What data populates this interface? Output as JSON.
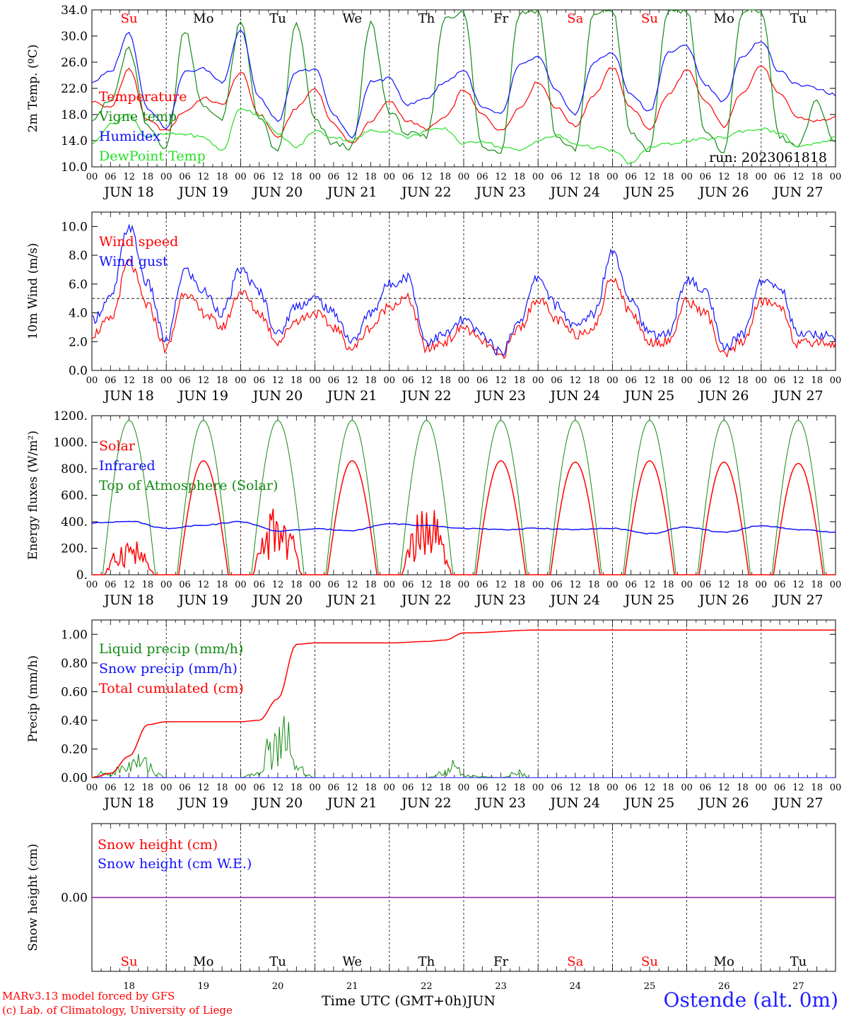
{
  "colors": {
    "red": "#ff0000",
    "blue": "#1010ff",
    "green": "#128a12",
    "light_green": "#22e022",
    "purple": "#8a1aa0",
    "black": "#000000",
    "sunday_red": "#ff0000"
  },
  "footer": {
    "credit_line1": "MARv3.13 model forced by GFS",
    "credit_line2": "(c) Lab. of Climatology, University of Liege",
    "x_axis_title": "Time UTC (GMT+0h)",
    "month": "JUN",
    "station": "Ostende (alt. 0m)"
  },
  "chart_data": [
    {
      "type": "line",
      "id": "temperature",
      "ylabel": "2m Temp. (ºC)",
      "ylim": [
        10,
        34
      ],
      "yticks": [
        "10.0",
        "14.0",
        "18.0",
        "22.0",
        "26.0",
        "30.0",
        "34.0"
      ],
      "annotation": "run: 2023061818",
      "weekday_labels": [
        "Su",
        "Mo",
        "Tu",
        "We",
        "Th",
        "Fr",
        "Sa",
        "Su",
        "Mo",
        "Tu"
      ],
      "date_labels": [
        "JUN 18",
        "JUN 19",
        "JUN 20",
        "JUN 21",
        "JUN 22",
        "JUN 23",
        "JUN 24",
        "JUN 25",
        "JUN 26",
        "JUN 27"
      ],
      "hour_ticks": [
        "00",
        "06",
        "12",
        "18"
      ],
      "x_unit": "hours since 2023-06-18 00 UTC",
      "x": [
        0,
        6,
        12,
        18,
        24,
        30,
        36,
        42,
        48,
        54,
        60,
        66,
        72,
        78,
        84,
        90,
        96,
        102,
        108,
        114,
        120,
        126,
        132,
        138,
        144,
        150,
        156,
        162,
        168,
        174,
        180,
        186,
        192,
        198,
        204,
        210,
        216,
        222,
        228,
        234,
        240
      ],
      "series": [
        {
          "name": "Temperature",
          "color": "red",
          "values": [
            20.0,
            19.0,
            25.0,
            17.0,
            15.5,
            18.5,
            20.5,
            19.5,
            24.5,
            18.0,
            14.5,
            19.0,
            22.0,
            16.5,
            13.5,
            17.0,
            20.0,
            17.0,
            15.8,
            17.5,
            21.8,
            18.0,
            15.5,
            19.0,
            23.0,
            19.0,
            16.2,
            21.0,
            25.2,
            19.0,
            15.8,
            21.0,
            24.8,
            20.0,
            16.2,
            21.5,
            25.5,
            21.0,
            17.5,
            17.0,
            17.5
          ]
        },
        {
          "name": "Vigne temp",
          "color": "green",
          "values": [
            17.5,
            20.0,
            28.0,
            16.0,
            13.0,
            31.0,
            19.0,
            17.5,
            32.0,
            17.5,
            12.0,
            32.0,
            17.0,
            13.5,
            13.0,
            32.0,
            18.5,
            15.0,
            14.5,
            33.0,
            33.5,
            13.0,
            12.5,
            33.5,
            34.0,
            14.5,
            12.5,
            33.5,
            34.0,
            15.0,
            12.5,
            34.0,
            34.0,
            15.0,
            12.5,
            34.0,
            34.0,
            14.5,
            13.0,
            20.0,
            13.5
          ]
        },
        {
          "name": "Humidex",
          "color": "blue",
          "values": [
            23.0,
            24.5,
            30.5,
            19.0,
            16.0,
            24.5,
            25.0,
            23.0,
            31.0,
            20.5,
            17.0,
            24.5,
            25.0,
            18.0,
            14.5,
            23.0,
            23.5,
            19.5,
            20.5,
            23.0,
            24.8,
            19.0,
            18.0,
            25.5,
            26.8,
            21.5,
            18.0,
            26.0,
            27.5,
            21.0,
            18.5,
            27.5,
            28.5,
            22.5,
            20.0,
            27.0,
            29.3,
            24.5,
            22.5,
            22.0,
            21.0
          ]
        },
        {
          "name": "DewPoint Temp",
          "color": "light_green",
          "values": [
            13.5,
            16.5,
            18.0,
            14.5,
            15.0,
            15.0,
            14.5,
            12.5,
            19.0,
            18.0,
            15.0,
            13.0,
            15.5,
            14.5,
            14.0,
            15.5,
            15.5,
            14.5,
            15.5,
            15.8,
            13.5,
            14.0,
            13.0,
            12.5,
            14.0,
            14.8,
            13.5,
            13.0,
            12.5,
            10.5,
            13.0,
            13.5,
            14.0,
            14.2,
            14.5,
            15.5,
            15.8,
            15.2,
            13.0,
            13.5,
            14.5
          ]
        }
      ]
    },
    {
      "type": "line",
      "id": "wind",
      "ylabel": "10m Wind (m/s)",
      "ylim": [
        0,
        11
      ],
      "yticks": [
        "0.0",
        "2.0",
        "4.0",
        "6.0",
        "8.0",
        "10.0"
      ],
      "reference_line": 5,
      "date_labels": [
        "JUN 18",
        "JUN 19",
        "JUN 20",
        "JUN 21",
        "JUN 22",
        "JUN 23",
        "JUN 24",
        "JUN 25",
        "JUN 26",
        "JUN 27"
      ],
      "hour_ticks": [
        "00",
        "06",
        "12",
        "18"
      ],
      "x": [
        0,
        6,
        12,
        18,
        24,
        30,
        36,
        42,
        48,
        54,
        60,
        66,
        72,
        78,
        84,
        90,
        96,
        102,
        108,
        114,
        120,
        126,
        132,
        138,
        144,
        150,
        156,
        162,
        168,
        174,
        180,
        186,
        192,
        198,
        204,
        210,
        216,
        222,
        228,
        234,
        240
      ],
      "series": [
        {
          "name": "Wind speed",
          "color": "red",
          "values": [
            2.5,
            3.5,
            7.5,
            4.5,
            1.5,
            5.5,
            4.0,
            3.0,
            5.5,
            4.0,
            2.0,
            3.5,
            4.0,
            3.0,
            1.5,
            3.0,
            4.5,
            5.0,
            1.5,
            2.0,
            3.0,
            2.0,
            1.0,
            3.0,
            5.0,
            3.5,
            2.5,
            3.0,
            6.5,
            4.0,
            2.0,
            2.0,
            4.8,
            4.0,
            1.0,
            2.0,
            4.8,
            4.5,
            1.8,
            2.0,
            1.8
          ]
        },
        {
          "name": "Wind gust",
          "color": "blue",
          "values": [
            3.5,
            5.0,
            10.0,
            6.0,
            2.0,
            7.0,
            5.5,
            4.0,
            7.0,
            5.5,
            2.5,
            4.5,
            5.0,
            4.0,
            2.0,
            4.0,
            6.0,
            6.5,
            2.0,
            2.5,
            3.5,
            2.5,
            1.2,
            3.5,
            6.5,
            4.5,
            3.0,
            4.0,
            8.3,
            5.0,
            2.5,
            2.5,
            6.3,
            5.5,
            1.5,
            2.5,
            6.2,
            5.8,
            2.5,
            2.5,
            2.3
          ]
        }
      ]
    },
    {
      "type": "line",
      "id": "energy",
      "ylabel": "Energy fluxes (W/m²)",
      "ylim": [
        0,
        1200
      ],
      "yticks": [
        "0.",
        "200.",
        "400.",
        "600.",
        "800.",
        "1000.",
        "1200."
      ],
      "date_labels": [
        "JUN 18",
        "JUN 19",
        "JUN 20",
        "JUN 21",
        "JUN 22",
        "JUN 23",
        "JUN 24",
        "JUN 25",
        "JUN 26",
        "JUN 27"
      ],
      "hour_ticks": [
        "00",
        "06",
        "12",
        "18"
      ],
      "daily_peak_hour_utc": 12,
      "series": [
        {
          "name": "Solar",
          "color": "red",
          "daily_peak": [
            300,
            860,
            560,
            860,
            560,
            860,
            850,
            860,
            850,
            840
          ]
        },
        {
          "name": "Infrared",
          "color": "blue",
          "x": [
            0,
            12,
            24,
            36,
            48,
            60,
            72,
            84,
            96,
            108,
            120,
            132,
            144,
            156,
            168,
            180,
            192,
            204,
            216,
            228,
            240
          ],
          "values": [
            390,
            405,
            350,
            375,
            400,
            330,
            345,
            335,
            385,
            370,
            350,
            340,
            350,
            340,
            350,
            310,
            360,
            320,
            370,
            340,
            320
          ]
        },
        {
          "name": "Top of Atmosphere (Solar)",
          "color": "green",
          "daily_peak": [
            1165,
            1165,
            1165,
            1165,
            1165,
            1165,
            1165,
            1165,
            1165,
            1165
          ]
        }
      ]
    },
    {
      "type": "line",
      "id": "precip",
      "ylabel": "Precip (mm/h)",
      "ylim": [
        0,
        1.1
      ],
      "yticks": [
        "0.00",
        "0.20",
        "0.40",
        "0.60",
        "0.80",
        "1.00"
      ],
      "date_labels": [
        "JUN 18",
        "JUN 19",
        "JUN 20",
        "JUN 21",
        "JUN 22",
        "JUN 23",
        "JUN 24",
        "JUN 25",
        "JUN 26",
        "JUN 27"
      ],
      "hour_ticks": [
        "00",
        "06",
        "12",
        "18"
      ],
      "series": [
        {
          "name": "Liquid precip (mm/h)",
          "color": "green",
          "x": [
            0,
            3,
            6,
            9,
            12,
            15,
            18,
            21,
            24,
            30,
            42,
            48,
            54,
            57,
            60,
            63,
            66,
            72,
            96,
            108,
            114,
            117,
            120,
            132,
            138,
            141,
            144,
            168,
            240
          ],
          "values": [
            0.0,
            0.04,
            0.03,
            0.08,
            0.12,
            0.15,
            0.14,
            0.03,
            0.0,
            0.0,
            0.0,
            0.0,
            0.05,
            0.25,
            0.32,
            0.48,
            0.1,
            0.0,
            0.0,
            0.0,
            0.05,
            0.11,
            0.02,
            0.0,
            0.05,
            0.0,
            0.0,
            0.0,
            0.0
          ]
        },
        {
          "name": "Snow precip (mm/h)",
          "color": "blue",
          "x": [
            0,
            240
          ],
          "values": [
            0.0,
            0.0
          ]
        },
        {
          "name": "Total cumulated (cm)",
          "color": "red",
          "x": [
            0,
            6,
            12,
            18,
            24,
            48,
            54,
            60,
            66,
            72,
            96,
            108,
            114,
            120,
            144,
            240
          ],
          "values": [
            0.0,
            0.03,
            0.15,
            0.37,
            0.39,
            0.39,
            0.4,
            0.55,
            0.93,
            0.94,
            0.94,
            0.95,
            0.96,
            1.01,
            1.03,
            1.03
          ]
        }
      ]
    },
    {
      "type": "line",
      "id": "snow",
      "ylabel": "Snow height (cm)",
      "ylim": [
        -1,
        1
      ],
      "yticks": [
        "0.00"
      ],
      "weekday_labels": [
        "Su",
        "Mo",
        "Tu",
        "We",
        "Th",
        "Fr",
        "Sa",
        "Su",
        "Mo",
        "Tu"
      ],
      "day_numbers": [
        "18",
        "19",
        "20",
        "21",
        "22",
        "23",
        "24",
        "25",
        "26",
        "27"
      ],
      "series": [
        {
          "name": "Snow height (cm)",
          "color": "red",
          "x": [
            0,
            240
          ],
          "values": [
            0,
            0
          ]
        },
        {
          "name": "Snow height (cm W.E.)",
          "color": "blue",
          "x": [
            0,
            240
          ],
          "values": [
            0,
            0
          ]
        }
      ]
    }
  ]
}
